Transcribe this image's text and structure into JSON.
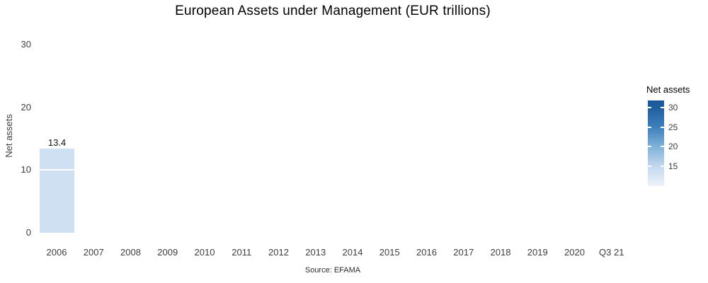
{
  "title": "European Assets under Management (EUR trillions)",
  "caption": "Source: EFAMA",
  "y_axis": {
    "label": "Net assets",
    "ticks": [
      0,
      10,
      20,
      30
    ]
  },
  "x_axis": {
    "categories": [
      "2006",
      "2007",
      "2008",
      "2009",
      "2010",
      "2011",
      "2012",
      "2013",
      "2014",
      "2015",
      "2016",
      "2017",
      "2018",
      "2019",
      "2020",
      "Q3 21"
    ]
  },
  "bar": {
    "category": "2006",
    "value": 13.4,
    "label": "13.4",
    "color": "#cfe0f2"
  },
  "legend": {
    "title": "Net assets",
    "ticks": [
      30,
      25,
      20,
      15
    ],
    "colors": {
      "top": "#1a579b",
      "t30": "#205f9f",
      "t25": "#3d7fbc",
      "t20": "#7fb2d9",
      "t15": "#c3d8ee",
      "bottom": "#eef3fb"
    }
  },
  "chart_data": {
    "type": "bar",
    "title": "European Assets under Management (EUR trillions)",
    "xlabel": "",
    "ylabel": "Net assets",
    "caption": "Source: EFAMA",
    "categories": [
      "2006",
      "2007",
      "2008",
      "2009",
      "2010",
      "2011",
      "2012",
      "2013",
      "2014",
      "2015",
      "2016",
      "2017",
      "2018",
      "2019",
      "2020",
      "Q3 21"
    ],
    "values": [
      13.4,
      null,
      null,
      null,
      null,
      null,
      null,
      null,
      null,
      null,
      null,
      null,
      null,
      null,
      null,
      null
    ],
    "data_labels": [
      "13.4"
    ],
    "y_ticks": [
      0,
      10,
      20,
      30
    ],
    "ylim": [
      0,
      33
    ],
    "grid": "white horizontal gridlines drawn over bars only",
    "bar_fill": "continuous Blues palette mapped to Net assets value",
    "legend": {
      "position": "right",
      "type": "continuous-colorbar",
      "title": "Net assets",
      "ticks": [
        15,
        20,
        25,
        30
      ],
      "palette": "Blues"
    }
  }
}
